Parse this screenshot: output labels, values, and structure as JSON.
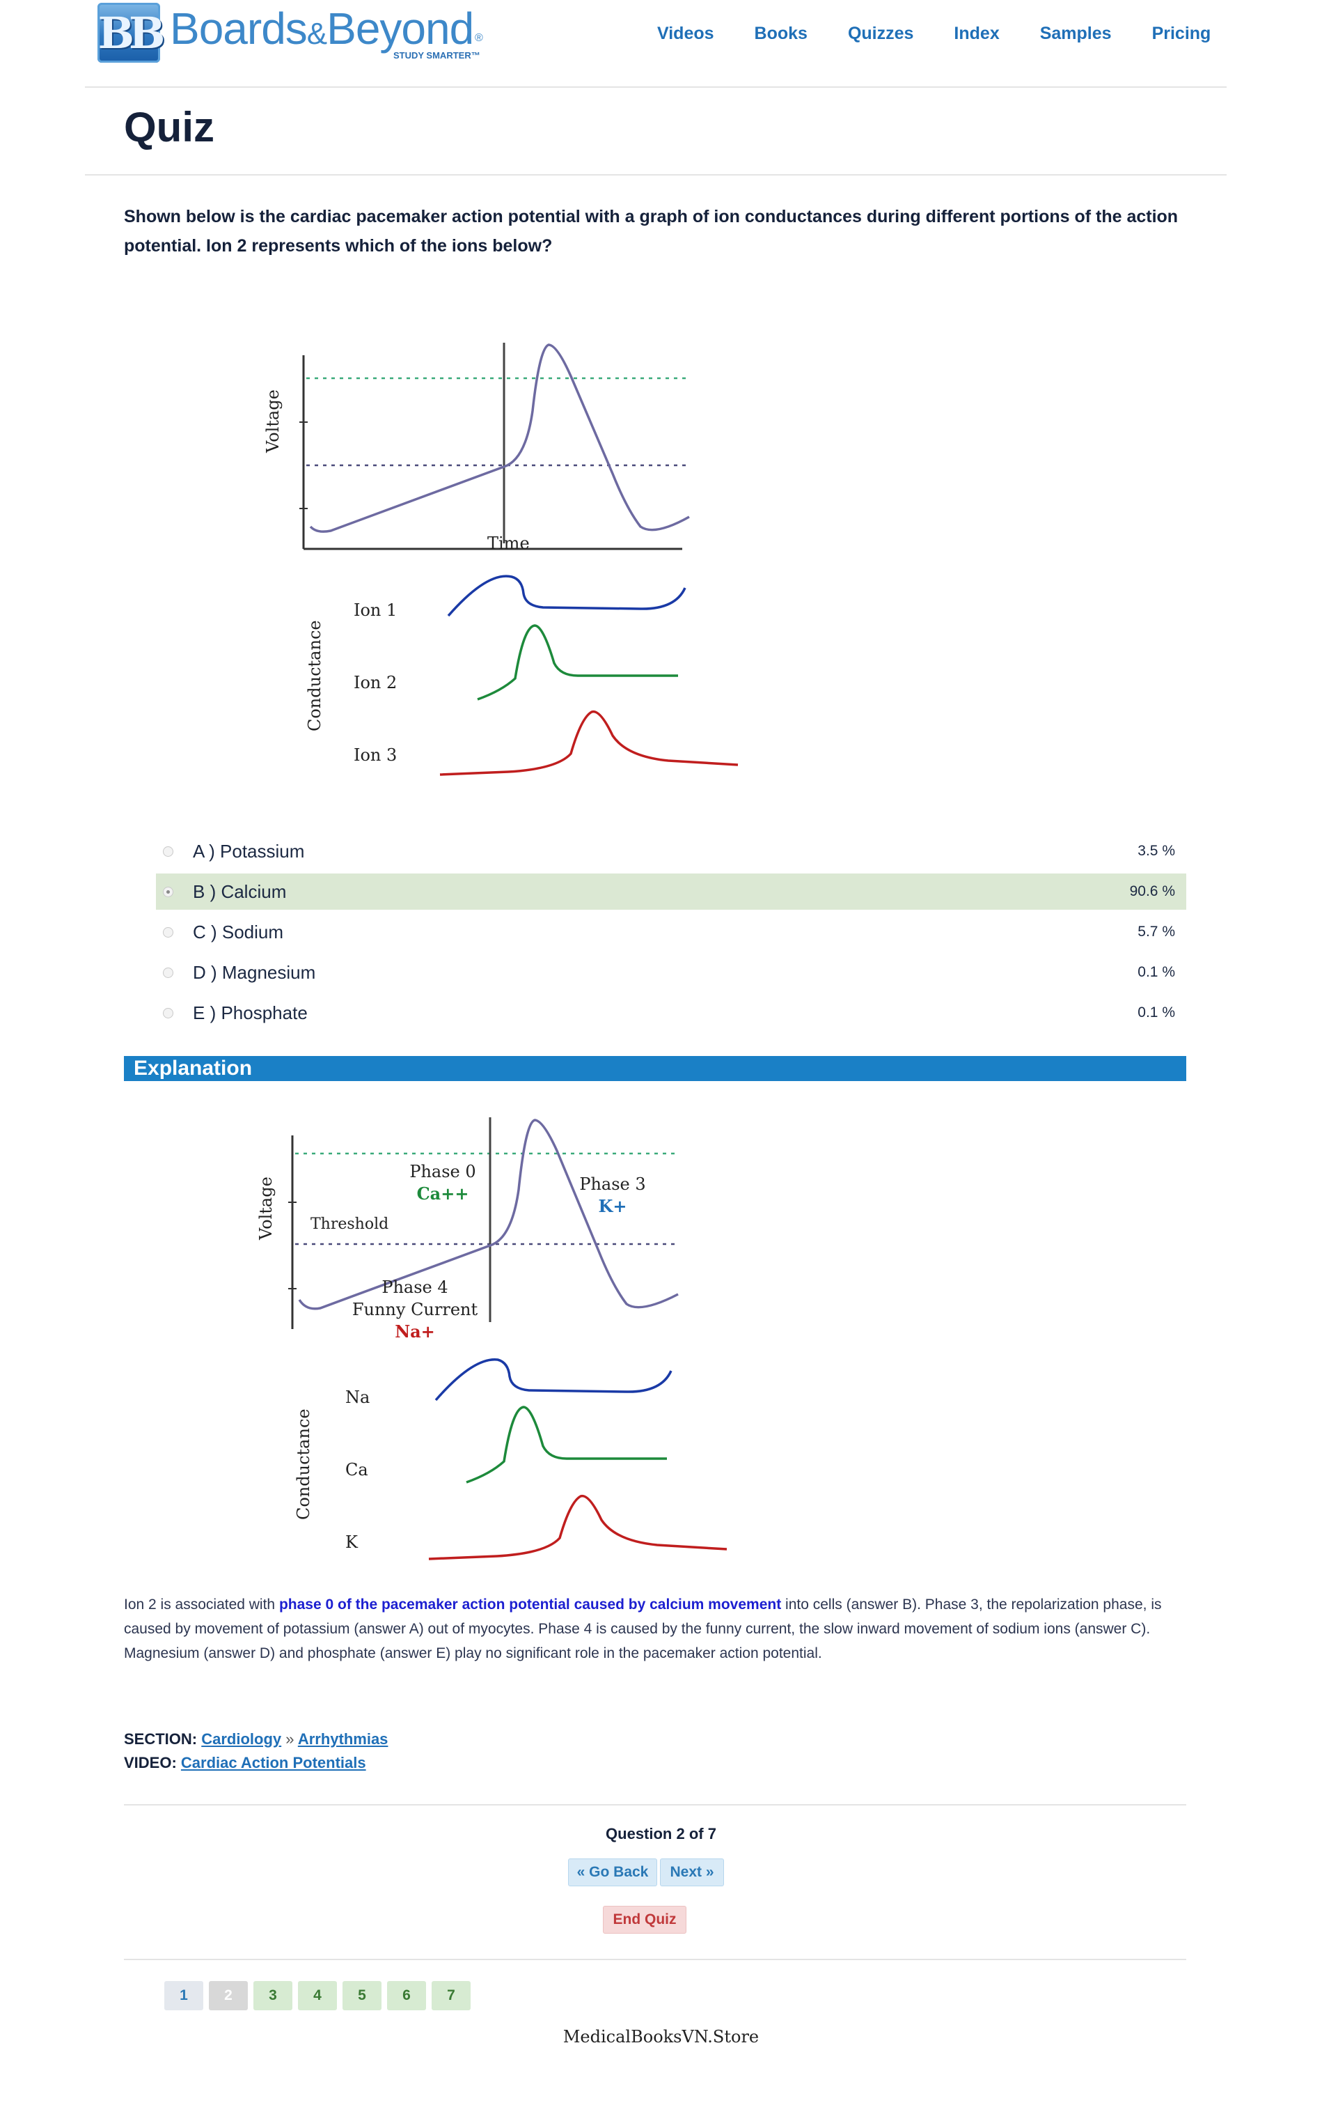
{
  "brand": {
    "logo_mark": "BB",
    "name_a": "Boards",
    "amp": "&",
    "name_b": "Beyond",
    "reg": "®",
    "tagline": "STUDY SMARTER™"
  },
  "nav": [
    "Videos",
    "Books",
    "Quizzes",
    "Index",
    "Samples",
    "Pricing"
  ],
  "page_title": "Quiz",
  "question": "Shown below is the cardiac pacemaker action potential with a graph of ion conductances during different portions of the action potential. Ion 2 represents which of the ions below?",
  "figure1": {
    "y_label": "Voltage",
    "x_label": "Time",
    "conductance_label": "Conductance",
    "ions": [
      "Ion 1",
      "Ion 2",
      "Ion 3"
    ]
  },
  "answers": [
    {
      "label": "A ) Potassium",
      "percent": "3.5 %",
      "selected": false
    },
    {
      "label": "B ) Calcium",
      "percent": "90.6 %",
      "selected": true
    },
    {
      "label": "C ) Sodium",
      "percent": "5.7 %",
      "selected": false
    },
    {
      "label": "D ) Magnesium",
      "percent": "0.1 %",
      "selected": false
    },
    {
      "label": "E ) Phosphate",
      "percent": "0.1 %",
      "selected": false
    }
  ],
  "explanation_heading": "Explanation",
  "figure2": {
    "y_label": "Voltage",
    "conductance_label": "Conductance",
    "threshold": "Threshold",
    "phase0": "Phase 0",
    "phase0_ion": "Ca++",
    "phase3": "Phase 3",
    "phase3_ion": "K+",
    "phase4": "Phase 4",
    "phase4_sub": "Funny Current",
    "phase4_ion": "Na+",
    "ions": [
      "Na",
      "Ca",
      "K"
    ]
  },
  "explanation": {
    "p1": "Ion 2 is associated with ",
    "p2": "phase 0 of the pacemaker action potential caused by calcium movement",
    "p3": " into cells (answer B). Phase 3, the repolarization phase, is caused by movement of potassium (answer A) out of myocytes. Phase 4 is caused by the funny current, the slow inward movement of sodium ions (answer C). Magnesium (answer D) and phosphate (answer E) play no significant role in the pacemaker action potential."
  },
  "section": {
    "label": "SECTION:",
    "link1": "Cardiology",
    "sep": "»",
    "link2": "Arrhythmias"
  },
  "video": {
    "label": "VIDEO:",
    "link": "Cardiac Action Potentials"
  },
  "question_counter": "Question 2 of 7",
  "buttons": {
    "back": "« Go Back",
    "next": "Next »",
    "end": "End Quiz"
  },
  "pages": [
    "1",
    "2",
    "3",
    "4",
    "5",
    "6",
    "7"
  ],
  "watermark": "MedicalBooksVN.Store"
}
